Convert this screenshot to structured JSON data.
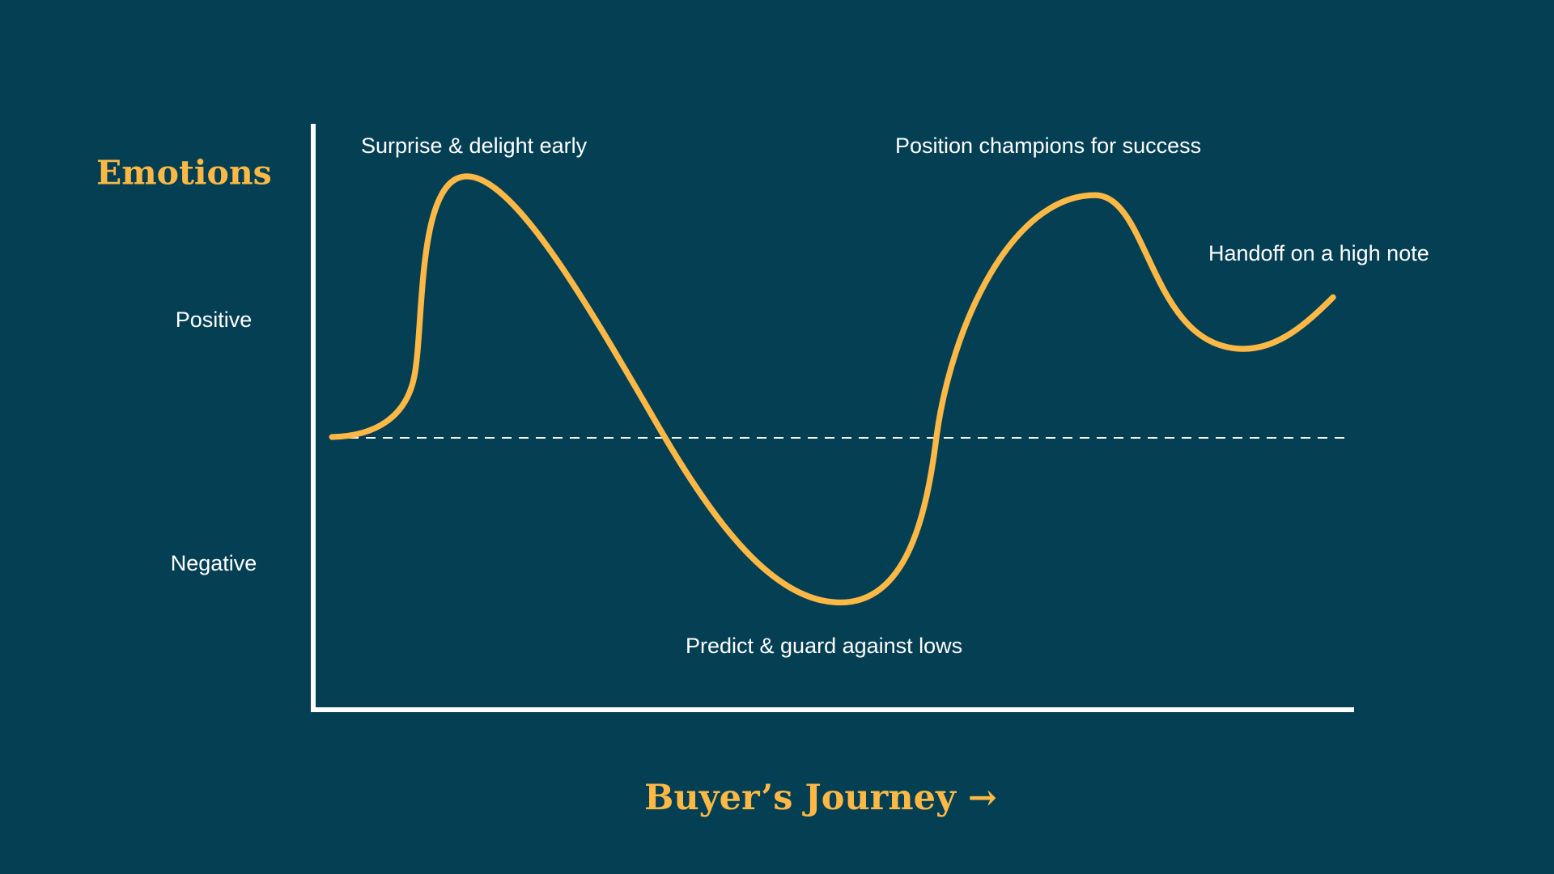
{
  "y_axis": {
    "title": "Emotions",
    "labels": [
      "Positive",
      "Negative"
    ]
  },
  "x_axis": {
    "title": "Buyer’s Journey →"
  },
  "annotations": [
    "Surprise & delight early",
    "Position champions for success",
    "Handoff on a high note",
    "Predict & guard against lows"
  ]
}
